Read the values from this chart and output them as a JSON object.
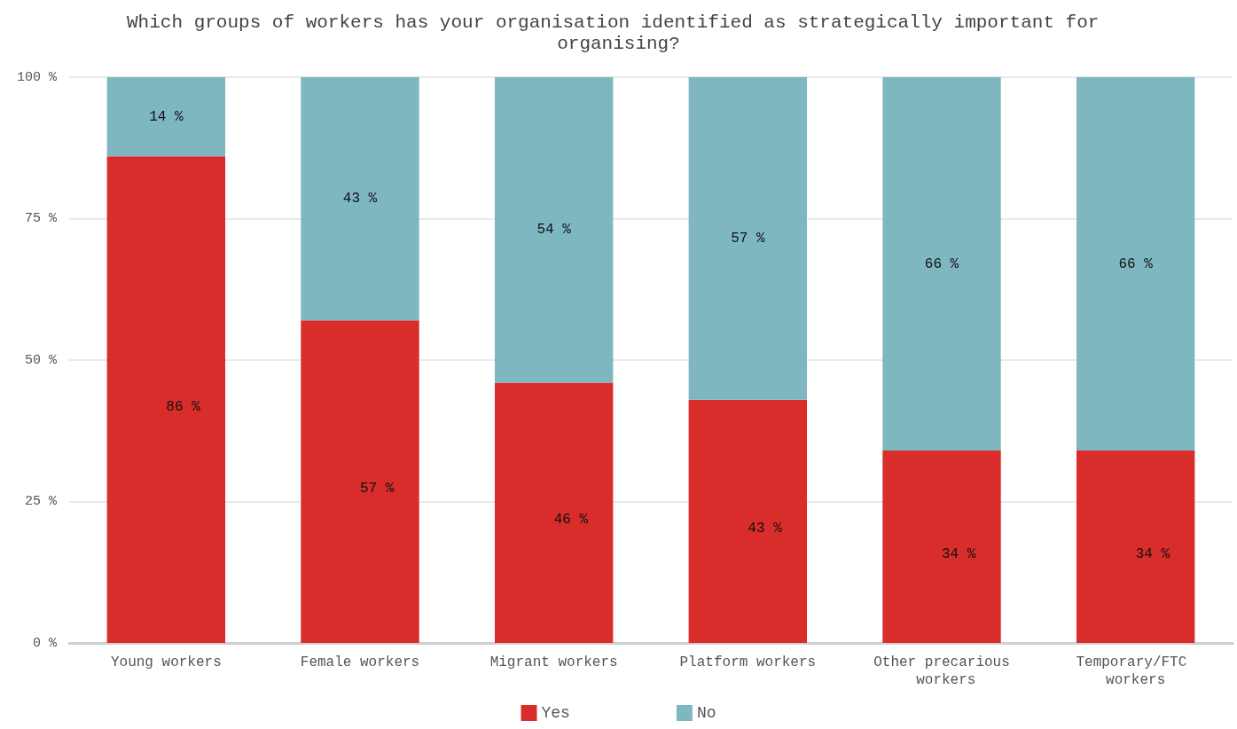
{
  "chart_data": {
    "type": "bar",
    "title": "Which groups of workers has your organisation identified as strategically important for organising?",
    "categories": [
      "Young workers",
      "Female workers",
      "Migrant workers",
      "Platform workers",
      "Other precarious workers",
      "Temporary/FTC workers"
    ],
    "stacked": true,
    "series": [
      {
        "name": "Yes",
        "color": "#d92d2b",
        "values": [
          86,
          57,
          46,
          43,
          34,
          34
        ],
        "value_labels": [
          "86 %",
          "57 %",
          "46 %",
          "43 %",
          "34 %",
          "34 %"
        ]
      },
      {
        "name": "No",
        "color": "#7fb7c0",
        "values": [
          14,
          43,
          54,
          57,
          66,
          66
        ],
        "value_labels": [
          "14 %",
          "43 %",
          "54 %",
          "57 %",
          "66 %",
          "66 %"
        ]
      }
    ],
    "ylim": [
      0,
      100
    ],
    "yticks": [
      {
        "value": 0,
        "label": "0 %"
      },
      {
        "value": 25,
        "label": "25 %"
      },
      {
        "value": 50,
        "label": "50 %"
      },
      {
        "value": 75,
        "label": "75 %"
      },
      {
        "value": 100,
        "label": "100 %"
      }
    ],
    "grid": "y",
    "legend": "bottom"
  }
}
